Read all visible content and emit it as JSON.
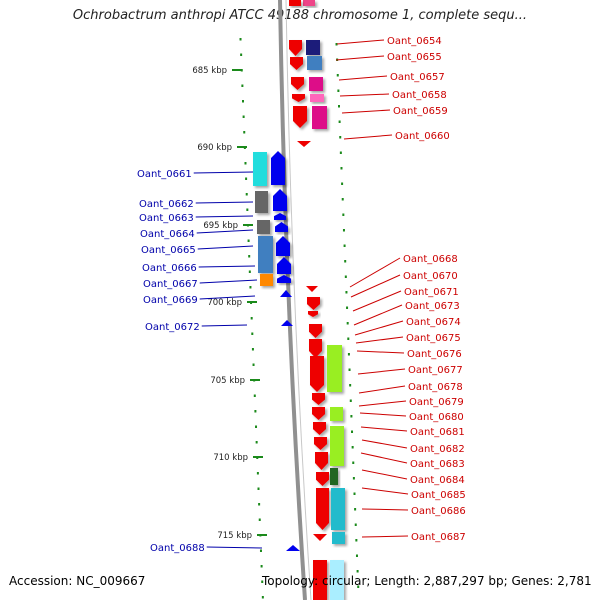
{
  "title": "Ochrobactrum anthropi ATCC 49188 chromosome 1, complete sequ...",
  "footer": {
    "accession": "Accession: NC_009667",
    "topology": "Topology: circular; Length: 2,887,297 bp; Genes: 2,781"
  },
  "kbp_ticks": [
    "685 kbp",
    "690 kbp",
    "695 kbp",
    "700 kbp",
    "705 kbp",
    "710 kbp",
    "715 kbp"
  ],
  "colors": {
    "forward_label": "#0000aa",
    "reverse_label": "#cc0000",
    "backbone": "#909090",
    "tick": "#1b8a1b"
  },
  "forward_genes": [
    "Oant_0661",
    "Oant_0662",
    "Oant_0663",
    "Oant_0664",
    "Oant_0665",
    "Oant_0666",
    "Oant_0667",
    "Oant_0669",
    "Oant_0672",
    "Oant_0688"
  ],
  "reverse_genes": [
    "Oant_0654",
    "Oant_0655",
    "Oant_0657",
    "Oant_0658",
    "Oant_0659",
    "Oant_0660",
    "Oant_0668",
    "Oant_0670",
    "Oant_0671",
    "Oant_0673",
    "Oant_0674",
    "Oant_0675",
    "Oant_0676",
    "Oant_0677",
    "Oant_0678",
    "Oant_0679",
    "Oant_0680",
    "Oant_0681",
    "Oant_0682",
    "Oant_0683",
    "Oant_0684",
    "Oant_0685",
    "Oant_0686",
    "Oant_0687"
  ]
}
